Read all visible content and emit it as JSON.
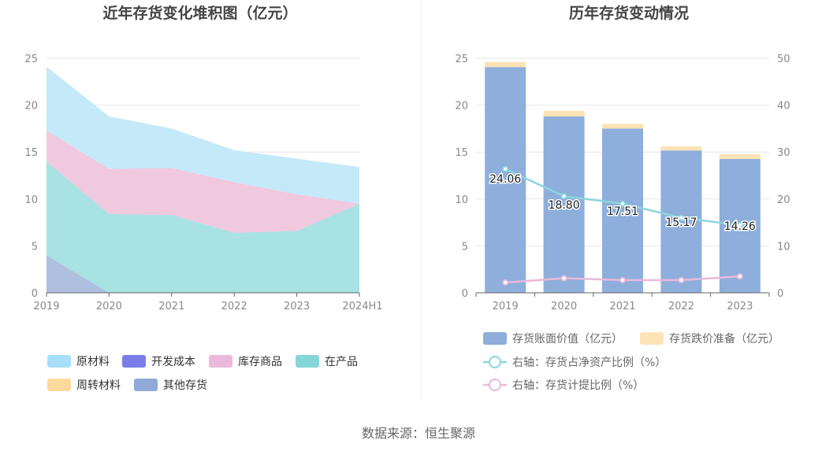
{
  "source": "数据来源：恒生聚源",
  "chart_data": [
    {
      "type": "area",
      "title": "近年存货变化堆积图（亿元）",
      "categories": [
        "2019",
        "2020",
        "2021",
        "2022",
        "2023",
        "2024H1"
      ],
      "ylim": [
        0,
        25
      ],
      "yticks": [
        "0",
        "5",
        "10",
        "15",
        "20",
        "25"
      ],
      "stacked": true,
      "grid": true,
      "legend_position": "bottom",
      "series": [
        {
          "name": "其他存货",
          "color": "#aebfe0",
          "values": [
            4.0,
            0,
            0,
            0,
            0,
            0
          ]
        },
        {
          "name": "周转材料",
          "color": "#fcd9a0",
          "values": [
            0,
            0,
            0,
            0,
            0,
            0
          ]
        },
        {
          "name": "在产品",
          "color": "#a8e2e3",
          "values": [
            10.0,
            8.4,
            8.3,
            6.4,
            6.6,
            9.5
          ]
        },
        {
          "name": "库存商品",
          "color": "#f0c8e0",
          "values": [
            3.3,
            4.8,
            5.0,
            5.4,
            3.9,
            0
          ]
        },
        {
          "name": "开发成本",
          "color": "#7a7de8",
          "values": [
            0,
            0,
            0,
            0,
            0,
            0
          ]
        },
        {
          "name": "原材料",
          "color": "#c4e9f9",
          "values": [
            6.8,
            5.6,
            4.2,
            3.4,
            3.8,
            3.9
          ]
        }
      ],
      "legend": [
        {
          "name": "原材料",
          "color": "#a8dff8"
        },
        {
          "name": "开发成本",
          "color": "#7a7de8"
        },
        {
          "name": "库存商品",
          "color": "#ecb9dc"
        },
        {
          "name": "在产品",
          "color": "#85d6d8"
        },
        {
          "name": "周转材料",
          "color": "#fcd99c"
        },
        {
          "name": "其他存货",
          "color": "#8fa9d8"
        }
      ]
    },
    {
      "type": "bar",
      "title": "历年存货变动情况",
      "categories": [
        "2019",
        "2020",
        "2021",
        "2022",
        "2023"
      ],
      "ylim": [
        0,
        25
      ],
      "yticks": [
        "0",
        "5",
        "10",
        "15",
        "20",
        "25"
      ],
      "y2lim": [
        0,
        50
      ],
      "y2ticks": [
        "0",
        "10",
        "20",
        "30",
        "40",
        "50"
      ],
      "grid": true,
      "legend_position": "bottom",
      "series": [
        {
          "name": "存货账面价值（亿元）",
          "type": "bar",
          "color": "#8eaedb",
          "values": [
            24.06,
            18.8,
            17.51,
            15.17,
            14.26
          ],
          "labels": [
            "24.06",
            "18.80",
            "17.51",
            "15.17",
            "14.26"
          ]
        },
        {
          "name": "存货跌价准备（亿元）",
          "type": "bar",
          "color": "#fde3b5",
          "values": [
            0.55,
            0.6,
            0.5,
            0.45,
            0.5
          ]
        },
        {
          "name": "右轴：存货占净资产比例（%）",
          "type": "line",
          "axis": "right",
          "color": "#8dd5dc",
          "values": [
            26.4,
            20.6,
            19.0,
            16.0,
            14.4
          ]
        },
        {
          "name": "右轴：存货计提比例（%）",
          "type": "line",
          "axis": "right",
          "color": "#e8b9dc",
          "values": [
            2.2,
            3.1,
            2.7,
            2.7,
            3.5
          ]
        }
      ]
    }
  ]
}
